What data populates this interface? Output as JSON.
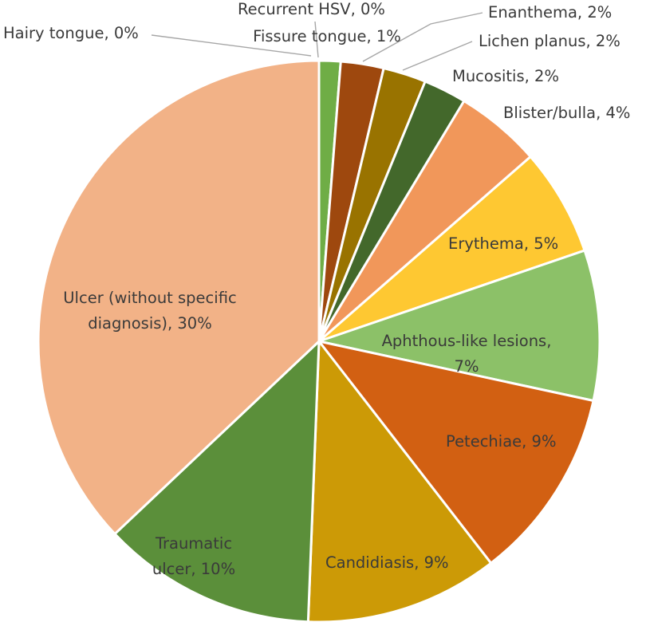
{
  "chart_data": {
    "type": "pie",
    "title": "",
    "legend": "none",
    "series": [
      {
        "label": "Fissure tongue, 1%",
        "name": "Fissure tongue",
        "value": 1,
        "color": "#6fad46"
      },
      {
        "label": "Enanthema, 2%",
        "name": "Enanthema",
        "value": 2,
        "color": "#9e480e"
      },
      {
        "label": "Lichen planus, 2%",
        "name": "Lichen planus",
        "value": 2,
        "color": "#997300"
      },
      {
        "label": "Mucositis, 2%",
        "name": "Mucositis",
        "value": 2,
        "color": "#43682b"
      },
      {
        "label": "Blister/bulla, 4%",
        "name": "Blister/bulla",
        "value": 4,
        "color": "#f1975a"
      },
      {
        "label": "Erythema, 5%",
        "name": "Erythema",
        "value": 5,
        "color": "#fec832"
      },
      {
        "label": "Aphthous-like lesions, 7%",
        "name": "Aphthous-like lesions",
        "value": 7,
        "color": "#8cc168"
      },
      {
        "label": "Petechiae, 9%",
        "name": "Petechiae",
        "value": 9,
        "color": "#d26012"
      },
      {
        "label": "Candidiasis, 9%",
        "name": "Candidiasis",
        "value": 9,
        "color": "#cc9a06"
      },
      {
        "label": "Traumatic ulcer, 10%",
        "name": "Traumatic ulcer",
        "value": 10,
        "color": "#5b8f3a"
      },
      {
        "label": "Ulcer (without specific diagnosis), 30%",
        "name": "Ulcer (without specific diagnosis)",
        "value": 30,
        "color": "#f2b287"
      },
      {
        "label": "Hairy tongue, 0%",
        "name": "Hairy tongue",
        "value": 0,
        "color": "#a5a5a5"
      },
      {
        "label": "Recurrent HSV, 0%",
        "name": "Recurrent HSV",
        "value": 0,
        "color": "#4472c4"
      }
    ]
  }
}
